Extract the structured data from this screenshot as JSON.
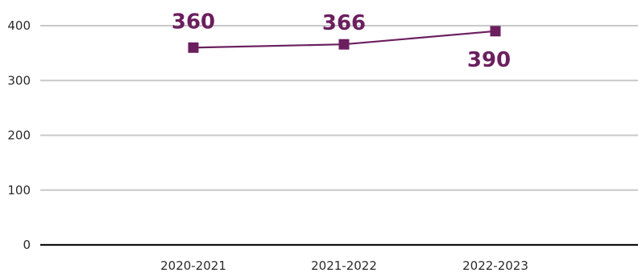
{
  "colors": {
    "series": "#6b1f5e",
    "grid": "#c8c8c8",
    "axis": "#111111",
    "text": "#2b2b2b"
  },
  "chart_data": {
    "type": "line",
    "title": "",
    "xlabel": "",
    "ylabel": "",
    "categories": [
      "2020-2021",
      "2021-2022",
      "2022-2023"
    ],
    "ylim": [
      0,
      400
    ],
    "yticks": [
      "0",
      "100",
      "200",
      "300",
      "400"
    ],
    "grid": true,
    "legend": "none",
    "series": [
      {
        "values": [
          360,
          366,
          390
        ],
        "labels": [
          "360",
          "366",
          "390"
        ],
        "marker": "square"
      }
    ]
  }
}
